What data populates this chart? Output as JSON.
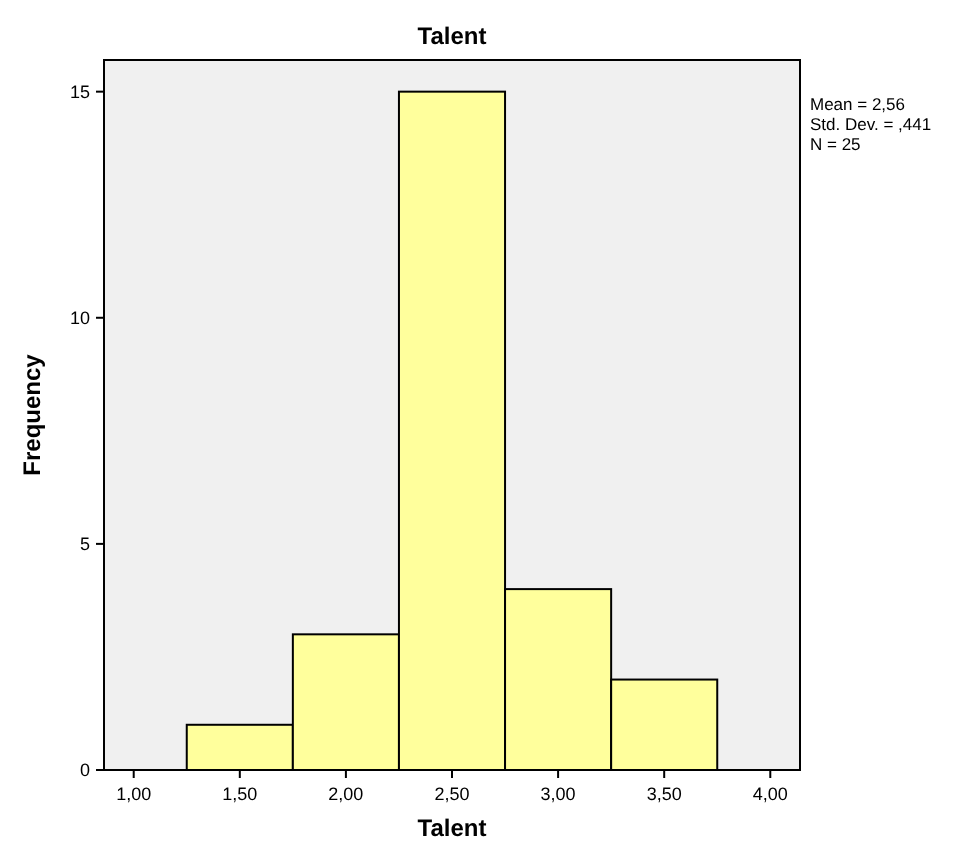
{
  "chart_data": {
    "type": "histogram",
    "title": "Talent",
    "xlabel": "Talent",
    "ylabel": "Frequency",
    "bins": [
      1.25,
      1.75,
      2.25,
      2.75,
      3.25,
      3.75
    ],
    "values": [
      1,
      3,
      15,
      4,
      2
    ],
    "color": "#ffff9c",
    "xlim": [
      0.86,
      4.14
    ],
    "xticks": [
      {
        "value": 1,
        "label": "1,00"
      },
      {
        "value": 1.5,
        "label": "1,50"
      },
      {
        "value": 2,
        "label": "2,00"
      },
      {
        "value": 2.5,
        "label": "2,50"
      },
      {
        "value": 3,
        "label": "3,00"
      },
      {
        "value": 3.5,
        "label": "3,50"
      },
      {
        "value": 4,
        "label": "4,00"
      }
    ],
    "ylim": [
      0,
      15.7
    ],
    "yticks": [
      0,
      5,
      10,
      15
    ],
    "annotations": [
      "Mean = 2,56",
      "Std. Dev. = ,441",
      "N = 25"
    ]
  }
}
